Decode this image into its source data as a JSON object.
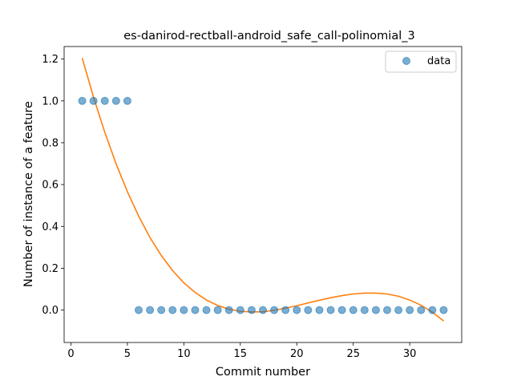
{
  "chart_data": {
    "type": "scatter",
    "title": "es-danirod-rectball-android_safe_call-polinomial_3",
    "xlabel": "Commit number",
    "ylabel": "Number of instance of a feature",
    "xlim": [
      -0.6,
      34.6
    ],
    "ylim": [
      -0.155,
      1.26
    ],
    "xticks": [
      0,
      5,
      10,
      15,
      20,
      25,
      30
    ],
    "yticks": [
      0.0,
      0.2,
      0.4,
      0.6,
      0.8,
      1.0,
      1.2
    ],
    "legend": {
      "position": "top-right",
      "entries": [
        "data"
      ]
    },
    "grid": false,
    "series": [
      {
        "name": "data",
        "kind": "scatter",
        "color": "#1f77b4",
        "x": [
          1,
          2,
          3,
          4,
          5,
          6,
          7,
          8,
          9,
          10,
          11,
          12,
          13,
          14,
          15,
          16,
          17,
          18,
          19,
          20,
          21,
          22,
          23,
          24,
          25,
          26,
          27,
          28,
          29,
          30,
          31,
          32,
          33
        ],
        "y": [
          1,
          1,
          1,
          1,
          1,
          0,
          0,
          0,
          0,
          0,
          0,
          0,
          0,
          0,
          0,
          0,
          0,
          0,
          0,
          0,
          0,
          0,
          0,
          0,
          0,
          0,
          0,
          0,
          0,
          0,
          0,
          0,
          0
        ]
      },
      {
        "kind": "line",
        "color": "#ff7f0e",
        "x": [
          1,
          2,
          3,
          4,
          5,
          6,
          7,
          8,
          9,
          10,
          11,
          12,
          13,
          14,
          15,
          16,
          17,
          18,
          19,
          20,
          21,
          22,
          23,
          24,
          25,
          26,
          27,
          28,
          29,
          30,
          31,
          32,
          33
        ],
        "y": [
          1.205,
          1.018,
          0.85,
          0.699,
          0.566,
          0.449,
          0.347,
          0.261,
          0.189,
          0.13,
          0.084,
          0.048,
          0.022,
          0.004,
          -0.006,
          -0.009,
          -0.008,
          -0.001,
          0.009,
          0.021,
          0.034,
          0.047,
          0.059,
          0.069,
          0.077,
          0.081,
          0.081,
          0.077,
          0.066,
          0.048,
          0.023,
          -0.01,
          -0.052
        ]
      }
    ]
  }
}
